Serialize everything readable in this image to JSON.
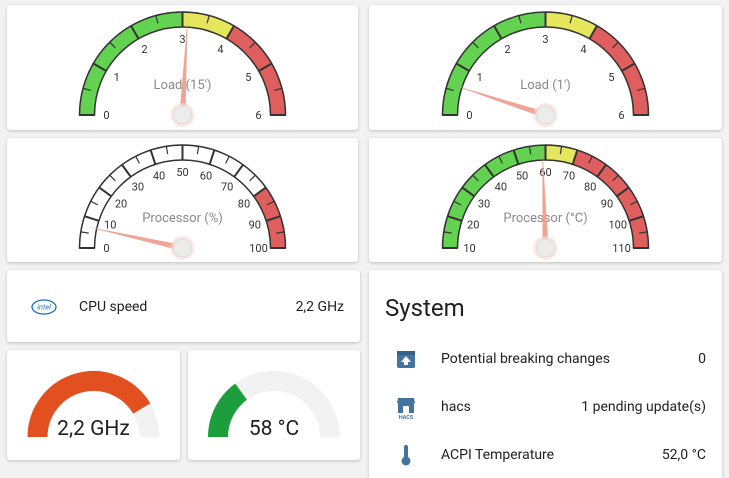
{
  "gauges": [
    {
      "title": "Load (15')",
      "range": [
        0,
        6
      ],
      "ticks": [
        0,
        1,
        2,
        3,
        4,
        5,
        6
      ],
      "value": 3.1,
      "segments": [
        {
          "from": 0,
          "to": 3,
          "color": "#62d250"
        },
        {
          "from": 3,
          "to": 4,
          "color": "#e6e65c"
        },
        {
          "from": 4,
          "to": 6,
          "color": "#df5f5f"
        }
      ]
    },
    {
      "title": "Load (1')",
      "range": [
        0,
        6
      ],
      "ticks": [
        0,
        1,
        2,
        3,
        4,
        5,
        6
      ],
      "value": 0.6,
      "segments": [
        {
          "from": 0,
          "to": 3,
          "color": "#62d250"
        },
        {
          "from": 3,
          "to": 4,
          "color": "#e6e65c"
        },
        {
          "from": 4,
          "to": 6,
          "color": "#df5f5f"
        }
      ]
    },
    {
      "title": "Processor (%)",
      "range": [
        0,
        100
      ],
      "ticks": [
        0,
        10,
        20,
        30,
        40,
        50,
        60,
        70,
        80,
        90,
        100
      ],
      "value": 7,
      "segments": [
        {
          "from": 80,
          "to": 100,
          "color": "#df5f5f"
        }
      ]
    },
    {
      "title": "Processor (°C)",
      "range": [
        10,
        110
      ],
      "ticks": [
        10,
        20,
        30,
        40,
        50,
        60,
        70,
        80,
        90,
        100,
        110
      ],
      "value": 59,
      "segments": [
        {
          "from": 10,
          "to": 60,
          "color": "#62d250"
        },
        {
          "from": 60,
          "to": 70,
          "color": "#e6e65c"
        },
        {
          "from": 70,
          "to": 110,
          "color": "#df5f5f"
        }
      ]
    }
  ],
  "entity": {
    "icon_label": "intel",
    "name": "CPU speed",
    "state": "2,2 GHz"
  },
  "small_gauges": [
    {
      "value": 2.2,
      "label": "2,2 GHz",
      "range": [
        0,
        2.65
      ],
      "color": "#e3501f"
    },
    {
      "value": 58,
      "label": "58 °C",
      "range": [
        40,
        100
      ],
      "color": "#1c9e3c"
    }
  ],
  "system": {
    "title": "System",
    "rows": [
      {
        "name": "Potential breaking changes",
        "state": "0"
      },
      {
        "name": "hacs",
        "icon_label": "HACS",
        "state": "1 pending update(s)"
      },
      {
        "name": "ACPI Temperature",
        "state": "52,0 °C"
      }
    ]
  }
}
